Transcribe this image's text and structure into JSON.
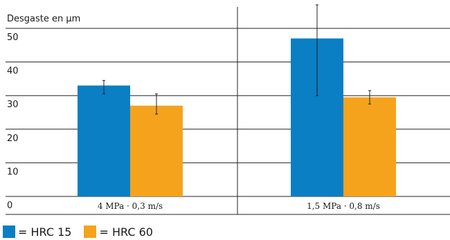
{
  "chart_data": {
    "type": "bar",
    "ylabel": "Desgaste en µm",
    "ylim": [
      0,
      50
    ],
    "yticks": [
      "0",
      "10",
      "20",
      "30",
      "40",
      "50"
    ],
    "categories": [
      "4 MPa · 0,3 m/s",
      "1,5 MPa · 0,8 m/s"
    ],
    "series": [
      {
        "name": "HRC 15",
        "color": "#0a7fc4",
        "values": [
          33,
          47
        ],
        "err_low": [
          30.5,
          30
        ],
        "err_high": [
          34.5,
          57
        ]
      },
      {
        "name": "HRC 60",
        "color": "#f5a31c",
        "values": [
          27,
          29.5
        ],
        "err_low": [
          24.5,
          27.5
        ],
        "err_high": [
          30.5,
          31.5
        ]
      }
    ],
    "legend": [
      {
        "label": "= HRC 15",
        "color": "#0a7fc4"
      },
      {
        "label": "= HRC 60",
        "color": "#f5a31c"
      }
    ],
    "grid": true,
    "legend_position": "bottom-left"
  }
}
